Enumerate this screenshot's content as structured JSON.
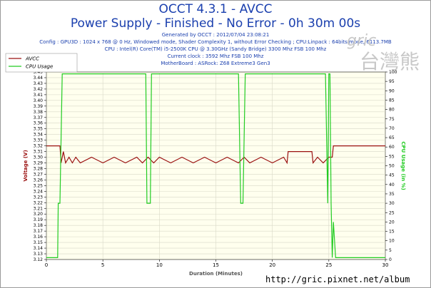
{
  "header": {
    "title": "OCCT 4.3.1 - AVCC",
    "subtitle": "Power Supply - Finished - No Error - 0h 30m 00s",
    "generated": "Generated by OCCT : 2012/07/04 23:08:21",
    "config": "Config : GPU3D : 1024 x 768 @ 0 Hz, Windowed mode, Shader Complexity 1, without Error Checking ; CPU:Linpack : 64bits mode, 6113.7MB",
    "cpu": "CPU : Intel(R) Core(TM) i5-2500K CPU @ 3.30GHz (Sandy Bridge) 3300 Mhz FSB 100 Mhz",
    "clock": "Current clock : 3592 Mhz FSB 100 Mhz",
    "motherboard": "MotherBoard : ASRock: Z68 Extreme3 Gen3"
  },
  "watermark": {
    "logo_text": "gric",
    "logo_cjk": "台灣熊"
  },
  "footer": {
    "url": "http://gric.pixnet.net/album"
  },
  "colors": {
    "avcc": "#9a1010",
    "cpu_usage": "#22cc22",
    "title": "#1a3fae",
    "plot_bg": "#ffffee",
    "grid": "#d8d8c8"
  },
  "chart_data": {
    "type": "line",
    "title": "OCCT 4.3.1 - AVCC",
    "xlabel": "Duration (Minutes)",
    "ylabel": "Voltage (V)",
    "y2label": "CPU Usage (in %)",
    "xlim": [
      0,
      30
    ],
    "ylim": [
      3.12,
      3.45
    ],
    "y2lim": [
      0,
      100
    ],
    "x_ticks": [
      0,
      5,
      10,
      15,
      20,
      25,
      30
    ],
    "y_ticks": [
      3.12,
      3.13,
      3.14,
      3.15,
      3.16,
      3.17,
      3.18,
      3.19,
      3.2,
      3.21,
      3.22,
      3.23,
      3.24,
      3.25,
      3.26,
      3.27,
      3.28,
      3.29,
      3.3,
      3.31,
      3.32,
      3.33,
      3.34,
      3.35,
      3.36,
      3.37,
      3.38,
      3.39,
      3.4,
      3.41,
      3.42,
      3.43,
      3.44,
      3.45
    ],
    "y_tick_labels": [
      "3.12",
      "3.13",
      "3.14",
      "3.15",
      "3.16",
      "3.17",
      "3.18",
      "3.19",
      "3.20",
      "3.21",
      "3.22",
      "3.23",
      "3.24",
      "3.25",
      "3.26",
      "3.27",
      "3.28",
      "3.29",
      "3.30",
      "3.31",
      "3.32",
      "3.33",
      "3.34",
      "3.35",
      "3.36",
      "3.37",
      "3.38",
      "3.39",
      "3.40",
      "3.41",
      "3.42",
      "3.43",
      "3.44",
      "3.45"
    ],
    "y2_ticks": [
      0,
      5,
      10,
      15,
      20,
      25,
      30,
      35,
      40,
      45,
      50,
      55,
      60,
      65,
      70,
      75,
      80,
      85,
      90,
      95,
      100
    ],
    "grid": true,
    "legend_position": "top-left",
    "series": [
      {
        "name": "AVCC",
        "axis": "left",
        "x": [
          0,
          1.2,
          1.3,
          1.5,
          1.7,
          2.0,
          2.3,
          2.6,
          3,
          4,
          5,
          6,
          7,
          8,
          8.5,
          9,
          9.5,
          10,
          11,
          12,
          13,
          14,
          15,
          16,
          17,
          17.5,
          18,
          19,
          20,
          21,
          21.3,
          21.4,
          22,
          23,
          23.5,
          23.6,
          24,
          24.5,
          25,
          25.3,
          25.4,
          26,
          27,
          28,
          29,
          30
        ],
        "y": [
          3.32,
          3.32,
          3.29,
          3.31,
          3.29,
          3.3,
          3.29,
          3.3,
          3.29,
          3.3,
          3.29,
          3.3,
          3.29,
          3.3,
          3.29,
          3.3,
          3.29,
          3.3,
          3.29,
          3.3,
          3.29,
          3.3,
          3.29,
          3.3,
          3.29,
          3.3,
          3.29,
          3.3,
          3.29,
          3.3,
          3.29,
          3.31,
          3.31,
          3.31,
          3.31,
          3.29,
          3.3,
          3.29,
          3.3,
          3.3,
          3.32,
          3.32,
          3.32,
          3.32,
          3.32,
          3.32
        ]
      },
      {
        "name": "CPU Usage",
        "axis": "right",
        "x": [
          0,
          1.0,
          1.05,
          1.2,
          1.4,
          8.8,
          8.9,
          9.2,
          9.3,
          17.0,
          17.2,
          17.4,
          17.6,
          24.7,
          24.9,
          25.0,
          25.1,
          25.2,
          25.3,
          25.4,
          25.6,
          30
        ],
        "y": [
          1,
          1,
          30,
          30,
          99,
          99,
          30,
          30,
          99,
          99,
          30,
          30,
          99,
          99,
          30,
          99,
          99,
          30,
          1,
          20,
          1,
          1
        ]
      }
    ]
  }
}
